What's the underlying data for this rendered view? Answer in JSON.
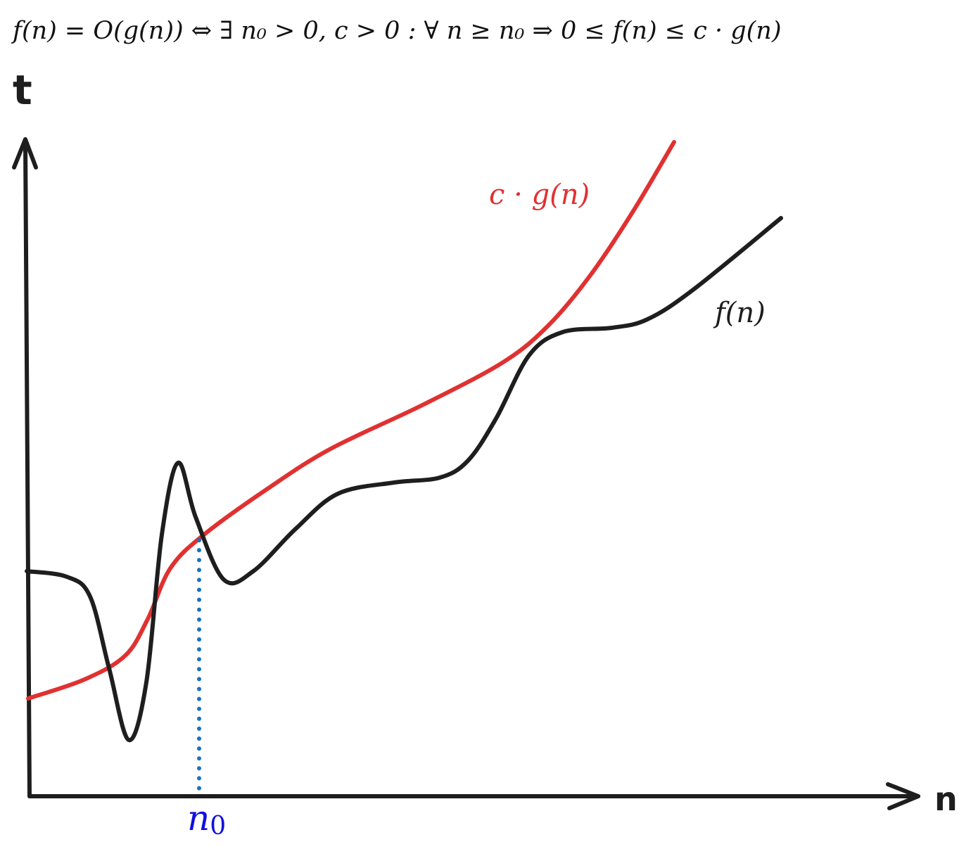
{
  "formula": "f(n) = O(g(n)) ⇔ ∃ n₀ > 0, c > 0 : ∀ n ≥ n₀ ⇒ 0 ≤ f(n) ≤ c · g(n)",
  "axes": {
    "y_label": "t",
    "x_label": "n"
  },
  "curves": {
    "g_label": "c · g(n)",
    "f_label": "f(n)"
  },
  "threshold": {
    "label": "n",
    "subscript": "0"
  }
}
